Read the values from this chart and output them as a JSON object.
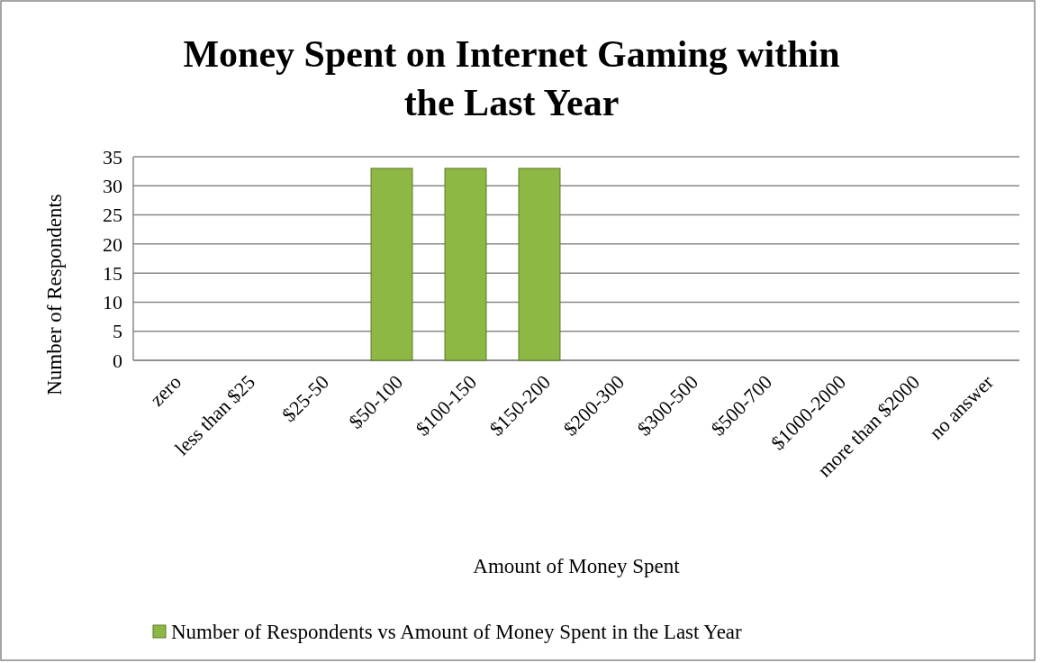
{
  "chart_data": {
    "type": "bar",
    "title": "Money Spent on Internet Gaming within the Last Year",
    "xlabel": "Amount of Money Spent",
    "ylabel": "Number of Respondents",
    "categories": [
      "zero",
      "less than $25",
      "$25-50",
      "$50-100",
      "$100-150",
      "$150-200",
      "$200-300",
      "$300-500",
      "$500-700",
      "$1000-2000",
      "more than $2000",
      "no answer"
    ],
    "series": [
      {
        "name": "Number of Respondents vs Amount of Money Spent in the Last Year",
        "color": "#8db843",
        "values": [
          0,
          0,
          0,
          33,
          33,
          33,
          0,
          0,
          0,
          0,
          0,
          0
        ]
      }
    ],
    "ylim": [
      0,
      35
    ],
    "yticks": [
      0,
      5,
      10,
      15,
      20,
      25,
      30,
      35
    ],
    "grid": "y",
    "legend": "bottom"
  }
}
